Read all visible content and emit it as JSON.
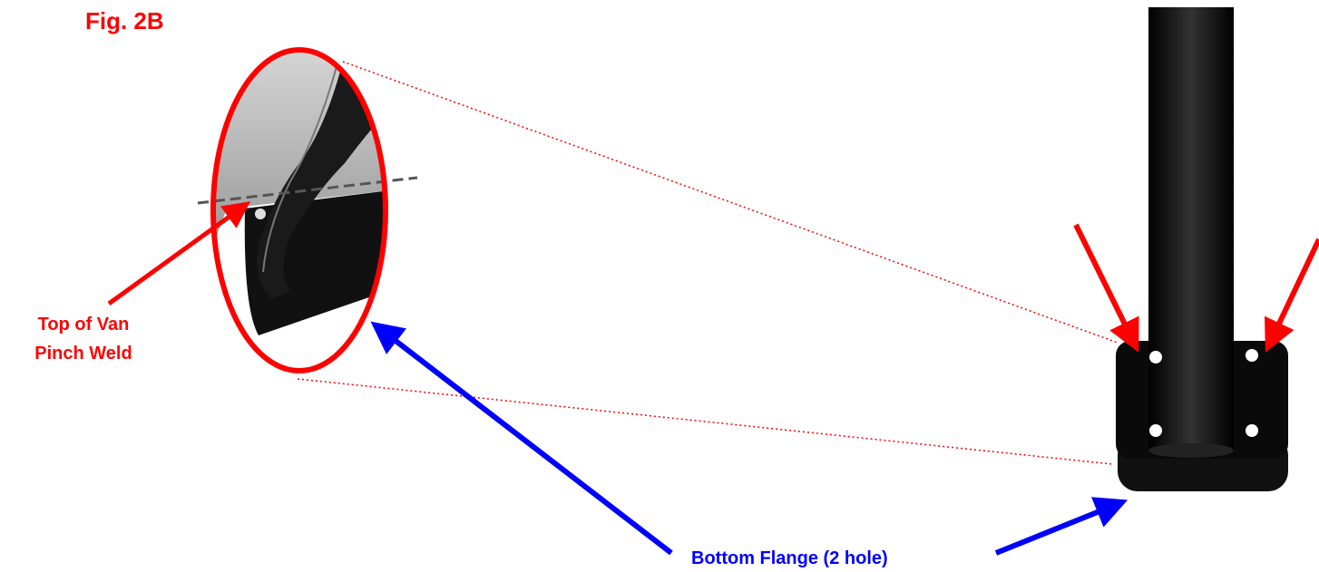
{
  "figure": {
    "label": "Fig. 2B"
  },
  "callouts": [
    {
      "lines": [
        "Top of Van",
        "Pinch Weld"
      ]
    },
    {
      "label": "Bottom Flange (2 hole)"
    }
  ]
}
